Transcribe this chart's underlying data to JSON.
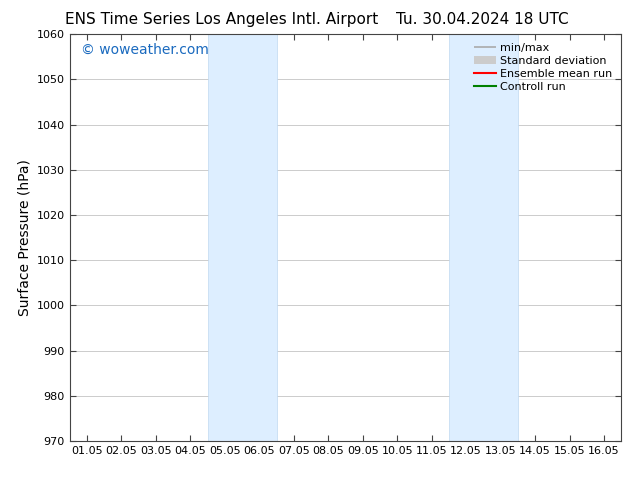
{
  "title_left": "ENS Time Series Los Angeles Intl. Airport",
  "title_right": "Tu. 30.04.2024 18 UTC",
  "ylabel": "Surface Pressure (hPa)",
  "ylim": [
    970,
    1060
  ],
  "yticks": [
    970,
    980,
    990,
    1000,
    1010,
    1020,
    1030,
    1040,
    1050,
    1060
  ],
  "xtick_labels": [
    "01.05",
    "02.05",
    "03.05",
    "04.05",
    "05.05",
    "06.05",
    "07.05",
    "08.05",
    "09.05",
    "10.05",
    "11.05",
    "12.05",
    "13.05",
    "14.05",
    "15.05",
    "16.05"
  ],
  "x_values": [
    0,
    1,
    2,
    3,
    4,
    5,
    6,
    7,
    8,
    9,
    10,
    11,
    12,
    13,
    14,
    15
  ],
  "xlim": [
    -0.5,
    15.5
  ],
  "shaded_regions": [
    {
      "x_start": 3.5,
      "x_end": 5.5
    },
    {
      "x_start": 10.5,
      "x_end": 12.5
    }
  ],
  "shaded_color": "#ddeeff",
  "shaded_edge_color": "#c0d8f0",
  "background_color": "#ffffff",
  "plot_bg_color": "#ffffff",
  "watermark_text": "© woweather.com",
  "watermark_color": "#1a6abf",
  "legend_labels": [
    "min/max",
    "Standard deviation",
    "Ensemble mean run",
    "Controll run"
  ],
  "legend_colors": [
    "#aaaaaa",
    "#cccccc",
    "#ff0000",
    "#008000"
  ],
  "title_fontsize": 11,
  "tick_label_fontsize": 8,
  "axis_label_fontsize": 10,
  "watermark_fontsize": 10,
  "legend_fontsize": 8,
  "grid_color": "#cccccc",
  "grid_linewidth": 0.7
}
